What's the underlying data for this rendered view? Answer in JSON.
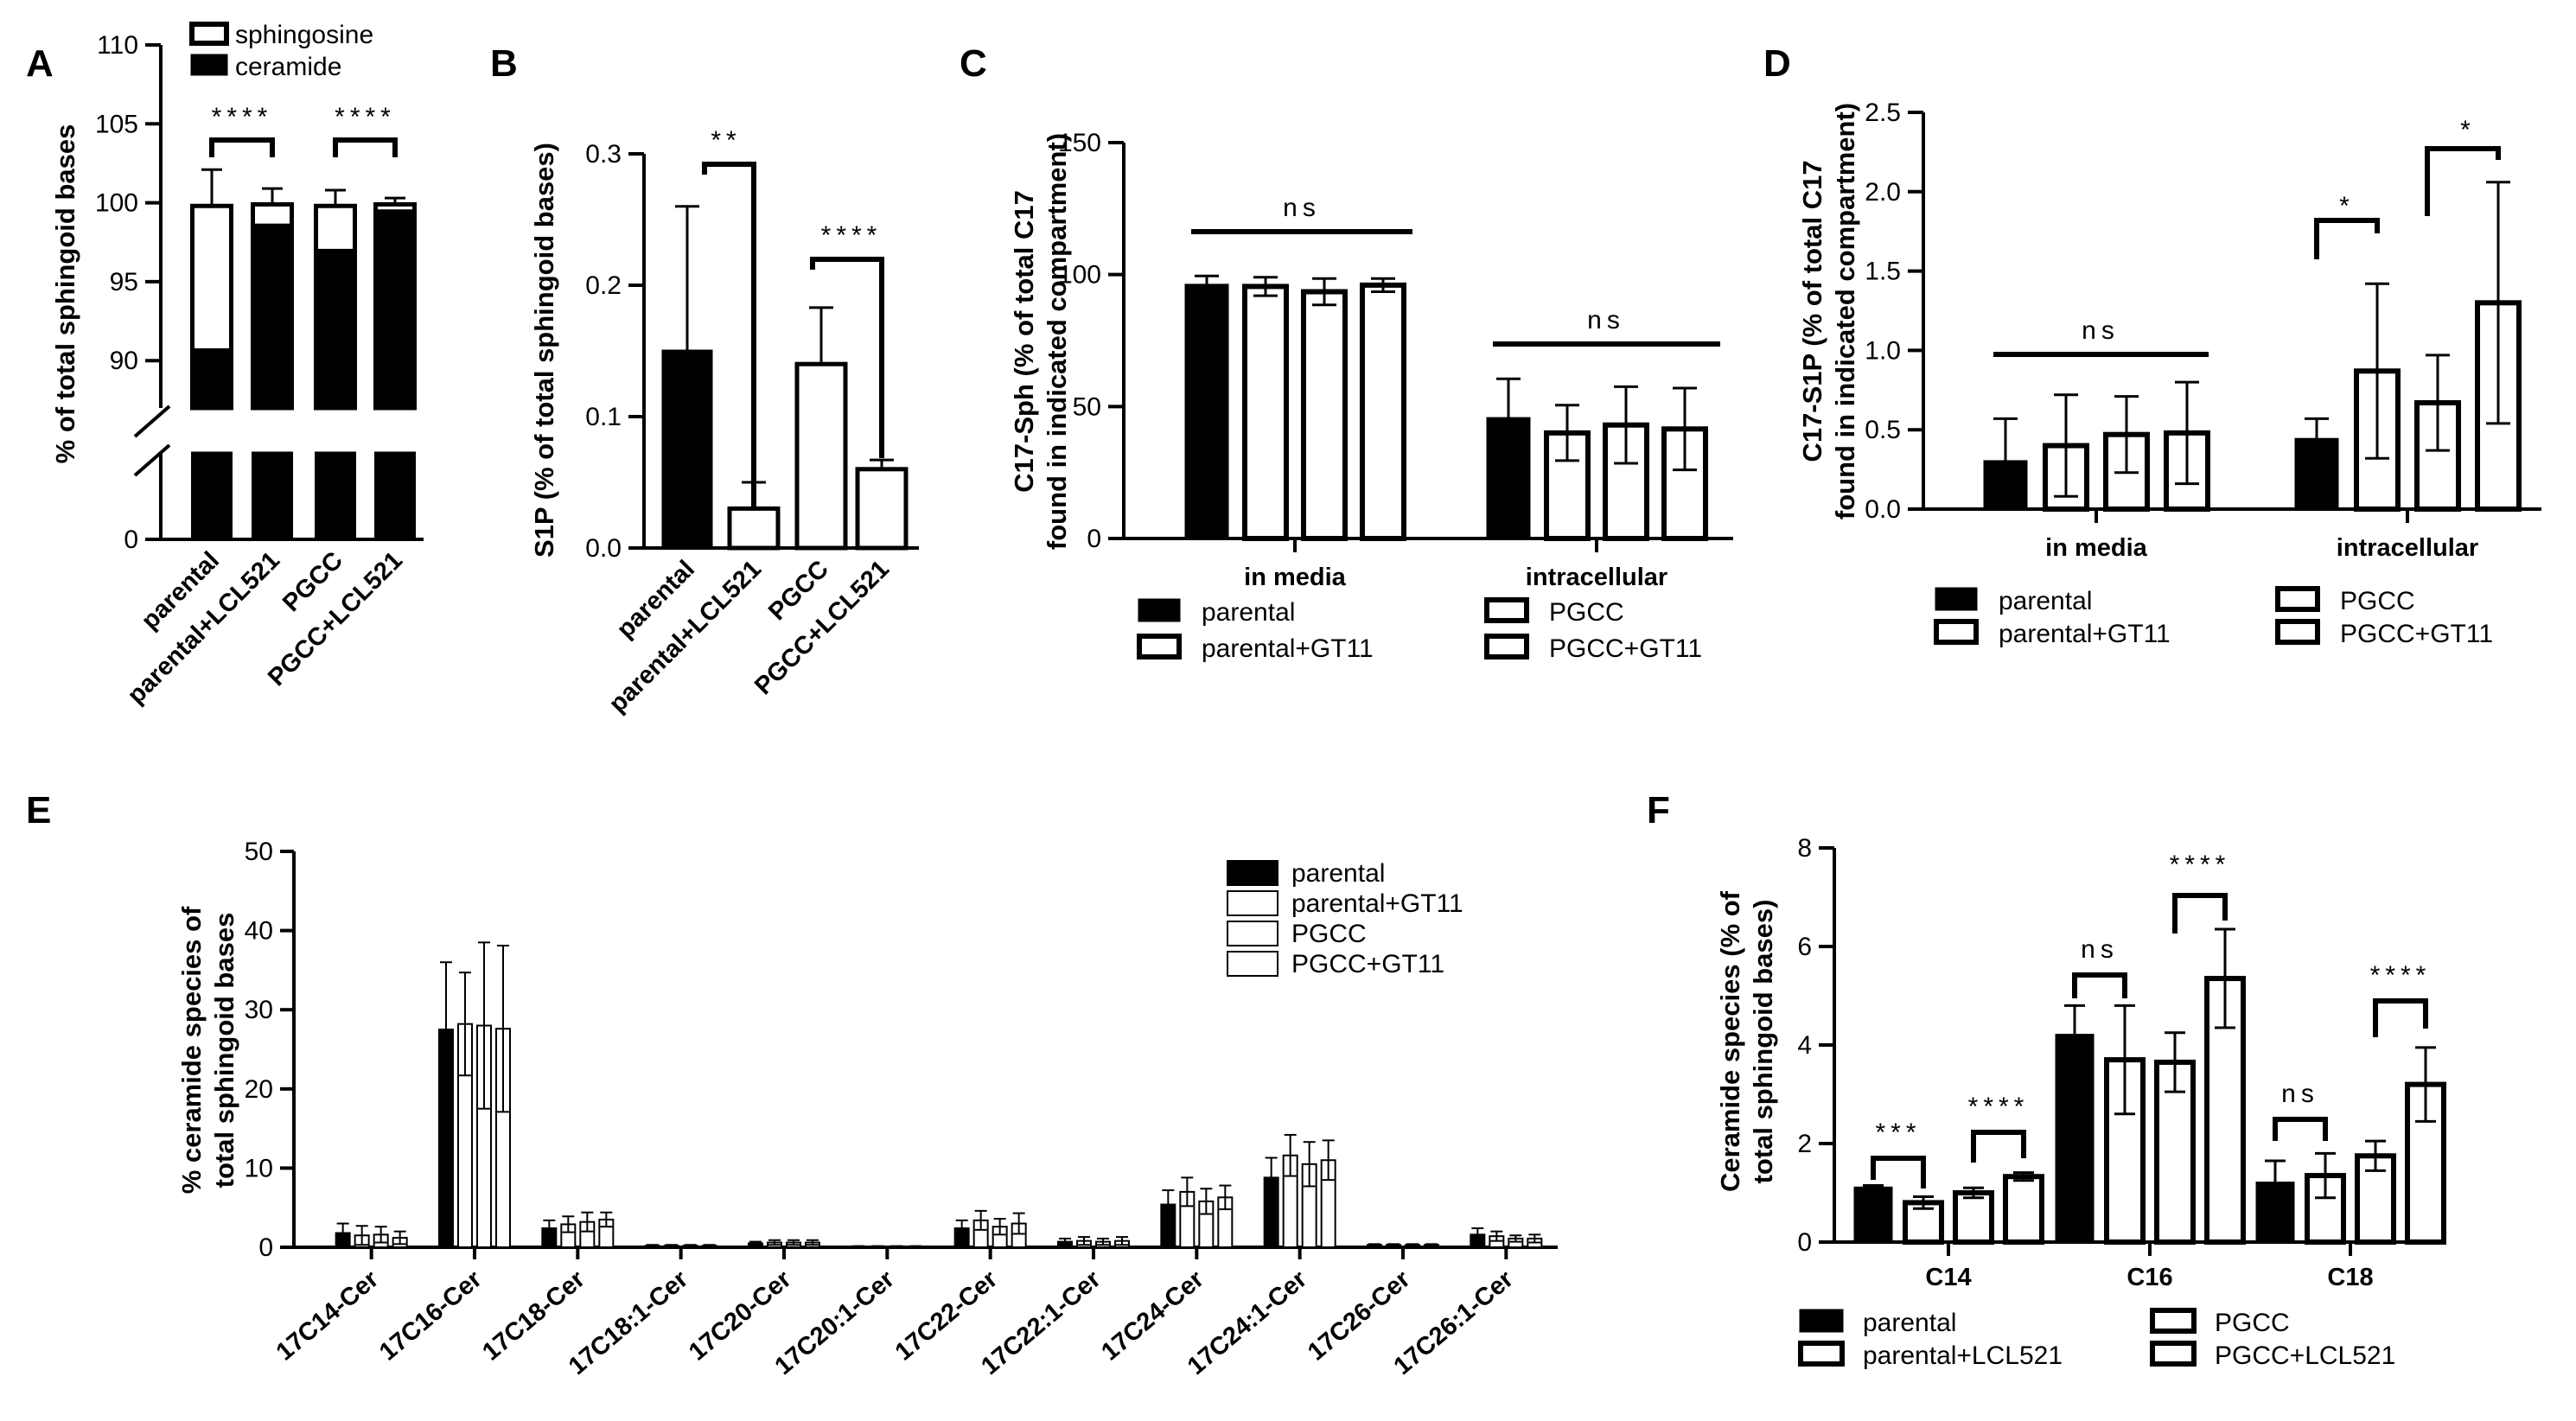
{
  "chart_data": [
    {
      "panel": "A",
      "type": "bar",
      "stacked": true,
      "title": "",
      "ylabel": "% of total sphingoid bases",
      "xlabel": "",
      "categories": [
        "parental",
        "parental+LCL521",
        "PGCC",
        "PGCC+LCL521"
      ],
      "ylim_lower": [
        0,
        10
      ],
      "ylim_upper": [
        87,
        110
      ],
      "yticks_lower": [
        "0"
      ],
      "yticks_upper": [
        "90",
        "95",
        "100",
        "105",
        "110"
      ],
      "series": [
        {
          "name": "ceramide",
          "fill": "#000000",
          "values": [
            90.7,
            98.6,
            97.0,
            99.5
          ],
          "errors": [
            2.2,
            0.6,
            0.8,
            0.3
          ]
        },
        {
          "name": "sphingosine",
          "fill": "#ffffff",
          "totals": [
            99.8,
            99.9,
            99.8,
            99.9
          ],
          "errors": [
            2.3,
            1.0,
            1.0,
            0.4
          ]
        }
      ],
      "legend": [
        "sphingosine",
        "ceramide"
      ],
      "significance": [
        {
          "pair": [
            0,
            1
          ],
          "label": "****"
        },
        {
          "pair": [
            2,
            3
          ],
          "label": "****"
        }
      ]
    },
    {
      "panel": "B",
      "type": "bar",
      "ylabel": "S1P (% of total sphingoid bases)",
      "categories": [
        "parental",
        "parental+LCL521",
        "PGCC",
        "PGCC+LCL521"
      ],
      "fills": [
        "#000000",
        "#ffffff",
        "#ffffff",
        "#ffffff"
      ],
      "values": [
        0.15,
        0.03,
        0.14,
        0.06
      ],
      "errors": [
        0.11,
        0.02,
        0.043,
        0.007
      ],
      "ylim": [
        0,
        0.3
      ],
      "yticks": [
        "0.0",
        "0.1",
        "0.2",
        "0.3"
      ],
      "significance": [
        {
          "pair": [
            0,
            1
          ],
          "label": "**"
        },
        {
          "pair": [
            2,
            3
          ],
          "label": "****"
        }
      ]
    },
    {
      "panel": "C",
      "type": "bar",
      "ylabel_line1": "C17-Sph (% of total C17",
      "ylabel_line2": "found in indicated compartment)",
      "groups": [
        "in media",
        "intracellular"
      ],
      "series_names": [
        "parental",
        "parental+GT11",
        "PGCC",
        "PGCC+GT11"
      ],
      "values": [
        [
          96,
          95.5,
          93.5,
          96
        ],
        [
          45.5,
          40,
          43,
          41.5
        ]
      ],
      "errors": [
        [
          3.5,
          3.5,
          5,
          2.5
        ],
        [
          15,
          10.5,
          14.5,
          15.5
        ]
      ],
      "ylim": [
        0,
        150
      ],
      "yticks": [
        "0",
        "50",
        "100",
        "150"
      ],
      "significance": [
        {
          "group": 0,
          "label": "ns"
        },
        {
          "group": 1,
          "label": "ns"
        }
      ]
    },
    {
      "panel": "D",
      "type": "bar",
      "ylabel_line1": "C17-S1P (% of total C17",
      "ylabel_line2": "found in indicated compartment)",
      "groups": [
        "in media",
        "intracellular"
      ],
      "series_names": [
        "parental",
        "parental+GT11",
        "PGCC",
        "PGCC+GT11"
      ],
      "values": [
        [
          0.3,
          0.4,
          0.47,
          0.48
        ],
        [
          0.44,
          0.87,
          0.67,
          1.3
        ]
      ],
      "errors": [
        [
          0.27,
          0.32,
          0.24,
          0.32
        ],
        [
          0.13,
          0.55,
          0.3,
          0.76
        ]
      ],
      "ylim": [
        0,
        2.5
      ],
      "yticks": [
        "0.0",
        "0.5",
        "1.0",
        "1.5",
        "2.0",
        "2.5"
      ],
      "significance": [
        {
          "group": 0,
          "label": "ns",
          "type": "line"
        },
        {
          "group": 1,
          "pair": [
            0,
            1
          ],
          "label": "*"
        },
        {
          "group": 1,
          "pair": [
            2,
            3
          ],
          "label": "*"
        }
      ]
    },
    {
      "panel": "E",
      "type": "bar",
      "ylabel_line1": "% ceramide species of",
      "ylabel_line2": "total sphingoid bases",
      "categories": [
        "17C14-Cer",
        "17C16-Cer",
        "17C18-Cer",
        "17C18:1-Cer",
        "17C20-Cer",
        "17C20:1-Cer",
        "17C22-Cer",
        "17C22:1-Cer",
        "17C24-Cer",
        "17C24:1-Cer",
        "17C26-Cer",
        "17C26:1-Cer"
      ],
      "series_names": [
        "parental",
        "parental+GT11",
        "PGCC",
        "PGCC+GT11"
      ],
      "values": [
        [
          1.8,
          1.5,
          1.6,
          1.2
        ],
        [
          27.5,
          28.2,
          28.0,
          27.6
        ],
        [
          2.4,
          2.9,
          3.2,
          3.5
        ],
        [
          0.2,
          0.2,
          0.2,
          0.2
        ],
        [
          0.5,
          0.6,
          0.6,
          0.6
        ],
        [
          0.1,
          0.1,
          0.1,
          0.1
        ],
        [
          2.4,
          3.4,
          2.6,
          3.0
        ],
        [
          0.7,
          0.8,
          0.7,
          0.8
        ],
        [
          5.4,
          7.0,
          5.8,
          6.3
        ],
        [
          8.8,
          11.6,
          10.5,
          11.0
        ],
        [
          0.3,
          0.3,
          0.3,
          0.3
        ],
        [
          1.6,
          1.4,
          1.1,
          1.1
        ]
      ],
      "errors": [
        [
          1.2,
          1.2,
          1.0,
          0.8
        ],
        [
          8.5,
          6.5,
          10.5,
          10.5
        ],
        [
          1.0,
          1.0,
          1.2,
          0.9
        ],
        [
          0.1,
          0.1,
          0.1,
          0.1
        ],
        [
          0.2,
          0.3,
          0.3,
          0.3
        ],
        [
          0.05,
          0.05,
          0.05,
          0.05
        ],
        [
          1.0,
          1.2,
          1.0,
          1.3
        ],
        [
          0.4,
          0.5,
          0.4,
          0.5
        ],
        [
          1.8,
          1.8,
          1.6,
          1.5
        ],
        [
          2.5,
          2.6,
          2.8,
          2.5
        ],
        [
          0.1,
          0.1,
          0.1,
          0.1
        ],
        [
          0.8,
          0.6,
          0.4,
          0.5
        ]
      ],
      "ylim": [
        0,
        50
      ],
      "yticks": [
        "0",
        "10",
        "20",
        "30",
        "40",
        "50"
      ],
      "legend_position": "top-right"
    },
    {
      "panel": "F",
      "type": "bar",
      "ylabel_line1": "Ceramide species (% of",
      "ylabel_line2": "total sphingoid bases)",
      "groups": [
        "C14",
        "C16",
        "C18"
      ],
      "series_names": [
        "parental",
        "parental+LCL521",
        "PGCC",
        "PGCC+LCL521"
      ],
      "values": [
        [
          1.1,
          0.8,
          1.0,
          1.33
        ],
        [
          4.2,
          3.7,
          3.65,
          5.35
        ],
        [
          1.2,
          1.35,
          1.75,
          3.2
        ]
      ],
      "errors": [
        [
          0.05,
          0.12,
          0.1,
          0.08
        ],
        [
          0.6,
          1.1,
          0.6,
          1.0
        ],
        [
          0.45,
          0.45,
          0.3,
          0.75
        ]
      ],
      "ylim": [
        0,
        8
      ],
      "yticks": [
        "0",
        "2",
        "4",
        "6",
        "8"
      ],
      "significance": [
        {
          "group": 0,
          "pair": [
            0,
            1
          ],
          "label": "***"
        },
        {
          "group": 0,
          "pair": [
            2,
            3
          ],
          "label": "****"
        },
        {
          "group": 1,
          "pair": [
            0,
            1
          ],
          "label": "ns"
        },
        {
          "group": 1,
          "pair": [
            2,
            3
          ],
          "label": "****"
        },
        {
          "group": 2,
          "pair": [
            0,
            1
          ],
          "label": "ns"
        },
        {
          "group": 2,
          "pair": [
            2,
            3
          ],
          "label": "****"
        }
      ]
    }
  ],
  "panel_labels": [
    "A",
    "B",
    "C",
    "D",
    "E",
    "F"
  ]
}
